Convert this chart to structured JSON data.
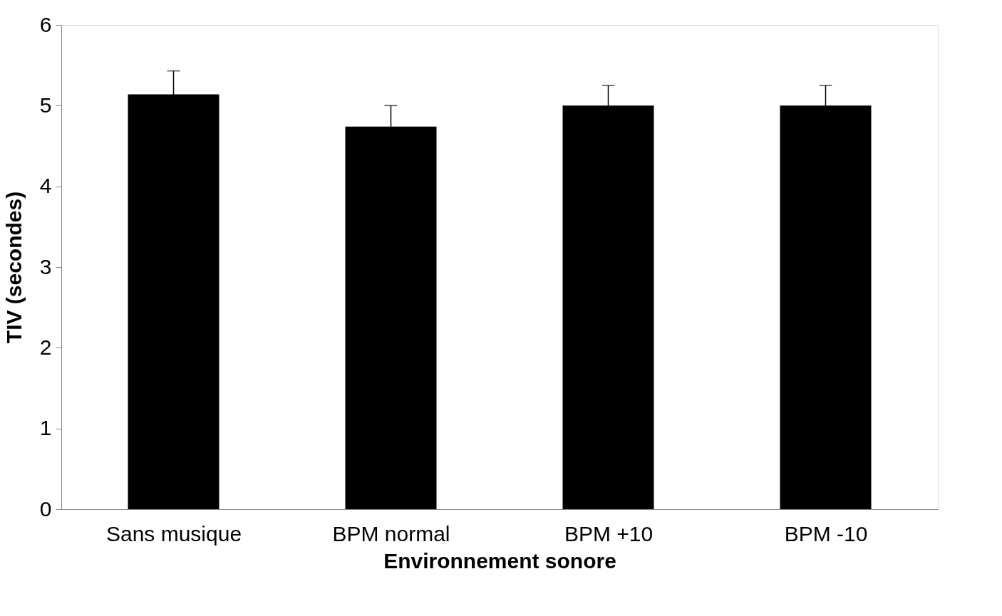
{
  "chart_data": {
    "type": "bar",
    "xlabel": "Environnement sonore",
    "ylabel": "TIV (secondes)",
    "categories": [
      "Sans musique",
      "BPM normal",
      "BPM +10",
      "BPM -10"
    ],
    "values": [
      5.14,
      4.74,
      5.0,
      5.0
    ],
    "errors": [
      0.29,
      0.26,
      0.25,
      0.25
    ],
    "color": "#000000",
    "ylim": [
      0,
      6
    ],
    "yticks": [
      0,
      1,
      2,
      3,
      4,
      5,
      6
    ],
    "grid": false
  }
}
